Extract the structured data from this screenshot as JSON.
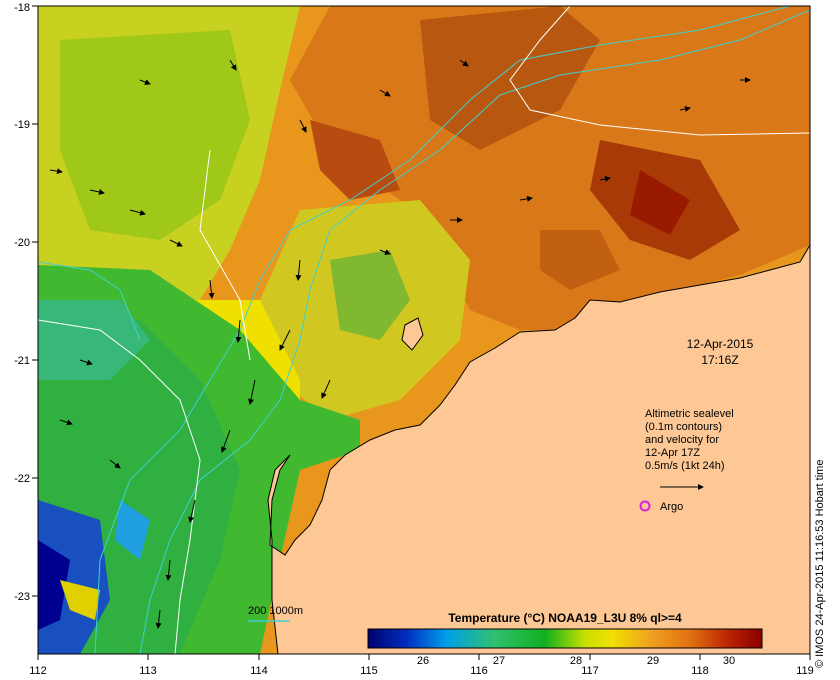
{
  "map": {
    "lon_ticks": [
      "112",
      "113",
      "114",
      "115",
      "116",
      "117",
      "118",
      "119"
    ],
    "lat_ticks": [
      "-18",
      "-19",
      "-20",
      "-21",
      "-22",
      "-23"
    ],
    "timestamp_date": "12-Apr-2015",
    "timestamp_time": "17:16Z",
    "altimetry_note_lines": [
      "Altimetric sealevel",
      "(0.1m contours)",
      "and velocity for",
      "12-Apr 17Z",
      "0.5m/s (1kt 24h)"
    ],
    "argo_label": "Argo",
    "bathy_label": "200  1000m",
    "credit": "© IMOS 24-Apr-2015 11:16:53 Hobart time",
    "colors": {
      "land": "#fdc895",
      "argo_marker": "#e020e0",
      "bathy_contour": "#40d0d0",
      "sealevel_contour": "#ffffff"
    }
  },
  "colorbar": {
    "title": "Temperature (°C) NOAA19_L3U 8% ql>=4",
    "ticks": [
      "26",
      "27",
      "28",
      "29",
      "30"
    ],
    "stops": [
      "#000070",
      "#0030c0",
      "#00a0e8",
      "#30c070",
      "#10b020",
      "#c8e000",
      "#f0e000",
      "#f0a020",
      "#e07010",
      "#b82000",
      "#8a0000"
    ]
  }
}
